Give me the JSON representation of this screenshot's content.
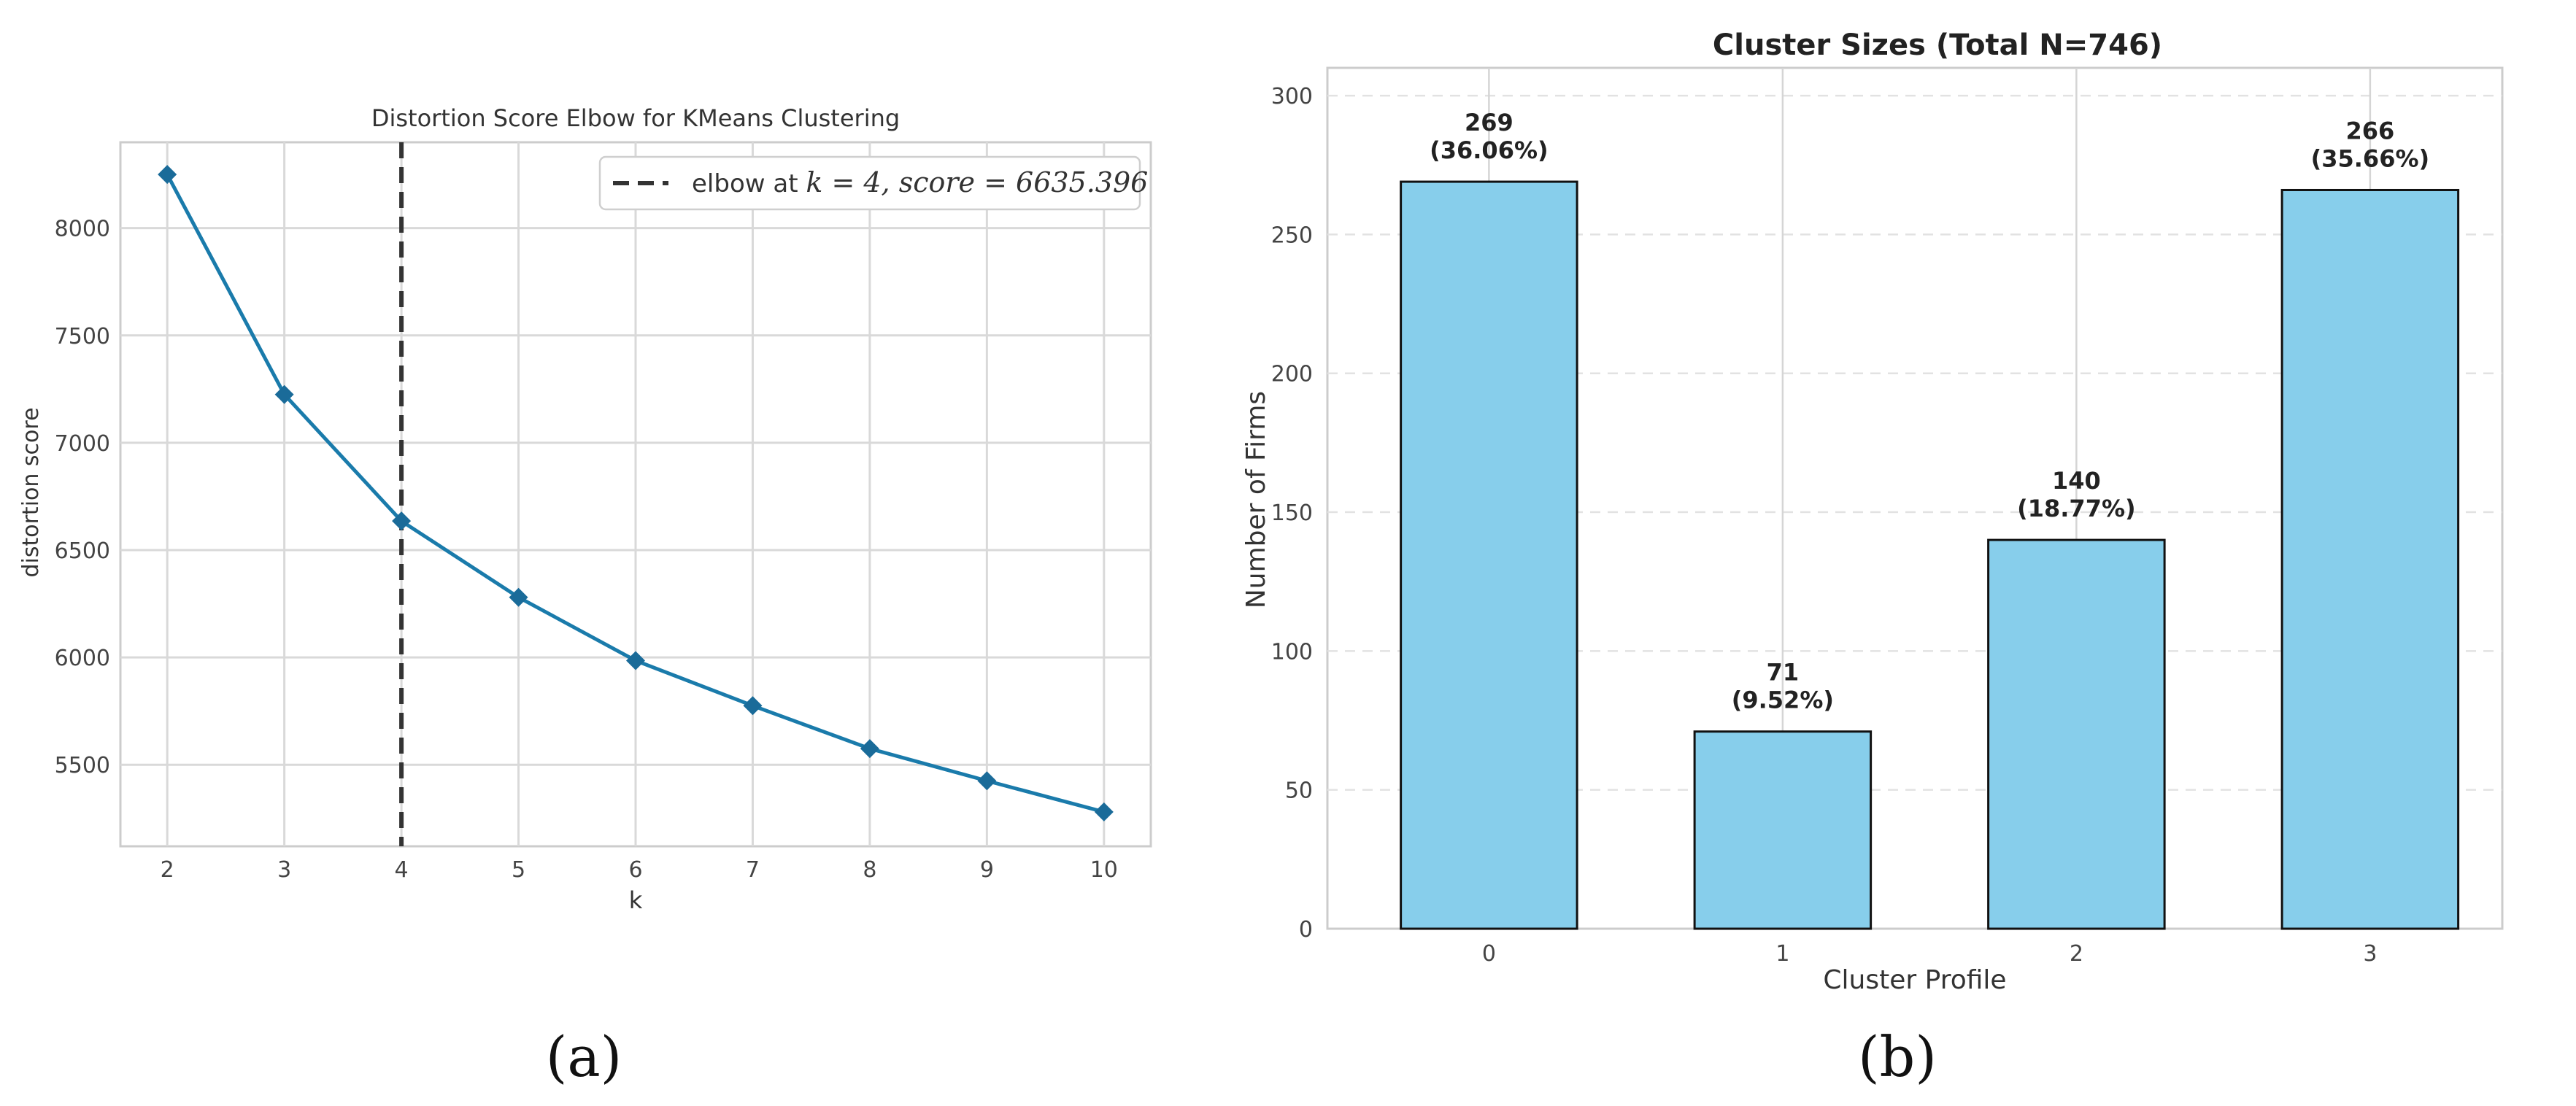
{
  "figure": {
    "panel_a_label": "(a)",
    "panel_b_label": "(b)"
  },
  "colors": {
    "elbow_line": "#1a7bab",
    "elbow_marker": "#1a6b99",
    "bar_fill": "#87ceeb",
    "bar_edge": "#111111",
    "grid": "#d9d9d9",
    "vline": "#333333"
  },
  "chart_data": [
    {
      "type": "line",
      "title": "Distortion Score Elbow for KMeans Clustering",
      "xlabel": "k",
      "ylabel": "distortion score",
      "x": [
        2,
        3,
        4,
        5,
        6,
        7,
        8,
        9,
        10
      ],
      "y": [
        8250,
        7225,
        6635.396,
        6280,
        5985,
        5775,
        5575,
        5425,
        5280
      ],
      "xlim": [
        1.6,
        10.4
      ],
      "ylim": [
        5120,
        8400
      ],
      "xticks": [
        "2",
        "3",
        "4",
        "5",
        "6",
        "7",
        "8",
        "9",
        "10"
      ],
      "yticks": [
        "5500",
        "6000",
        "6500",
        "7000",
        "7500",
        "8000"
      ],
      "grid": true,
      "marker": "diamond",
      "elbow": {
        "k": 4,
        "legend_text": "elbow at ",
        "legend_math": "k = 4, score = 6635.396",
        "line_style": "dashed"
      },
      "legend_position": "top-right"
    },
    {
      "type": "bar",
      "title": "Cluster Sizes (Total N=746)",
      "xlabel": "Cluster Profile",
      "ylabel": "Number of Firms",
      "categories": [
        "0",
        "1",
        "2",
        "3"
      ],
      "values": [
        269,
        71,
        140,
        266
      ],
      "value_labels": [
        "269",
        "71",
        "140",
        "266"
      ],
      "percent_labels": [
        "(36.06%)",
        "(9.52%)",
        "(18.77%)",
        "(35.66%)"
      ],
      "ylim": [
        0,
        310
      ],
      "yticks": [
        "0",
        "50",
        "100",
        "150",
        "200",
        "250",
        "300"
      ],
      "grid": true
    }
  ]
}
